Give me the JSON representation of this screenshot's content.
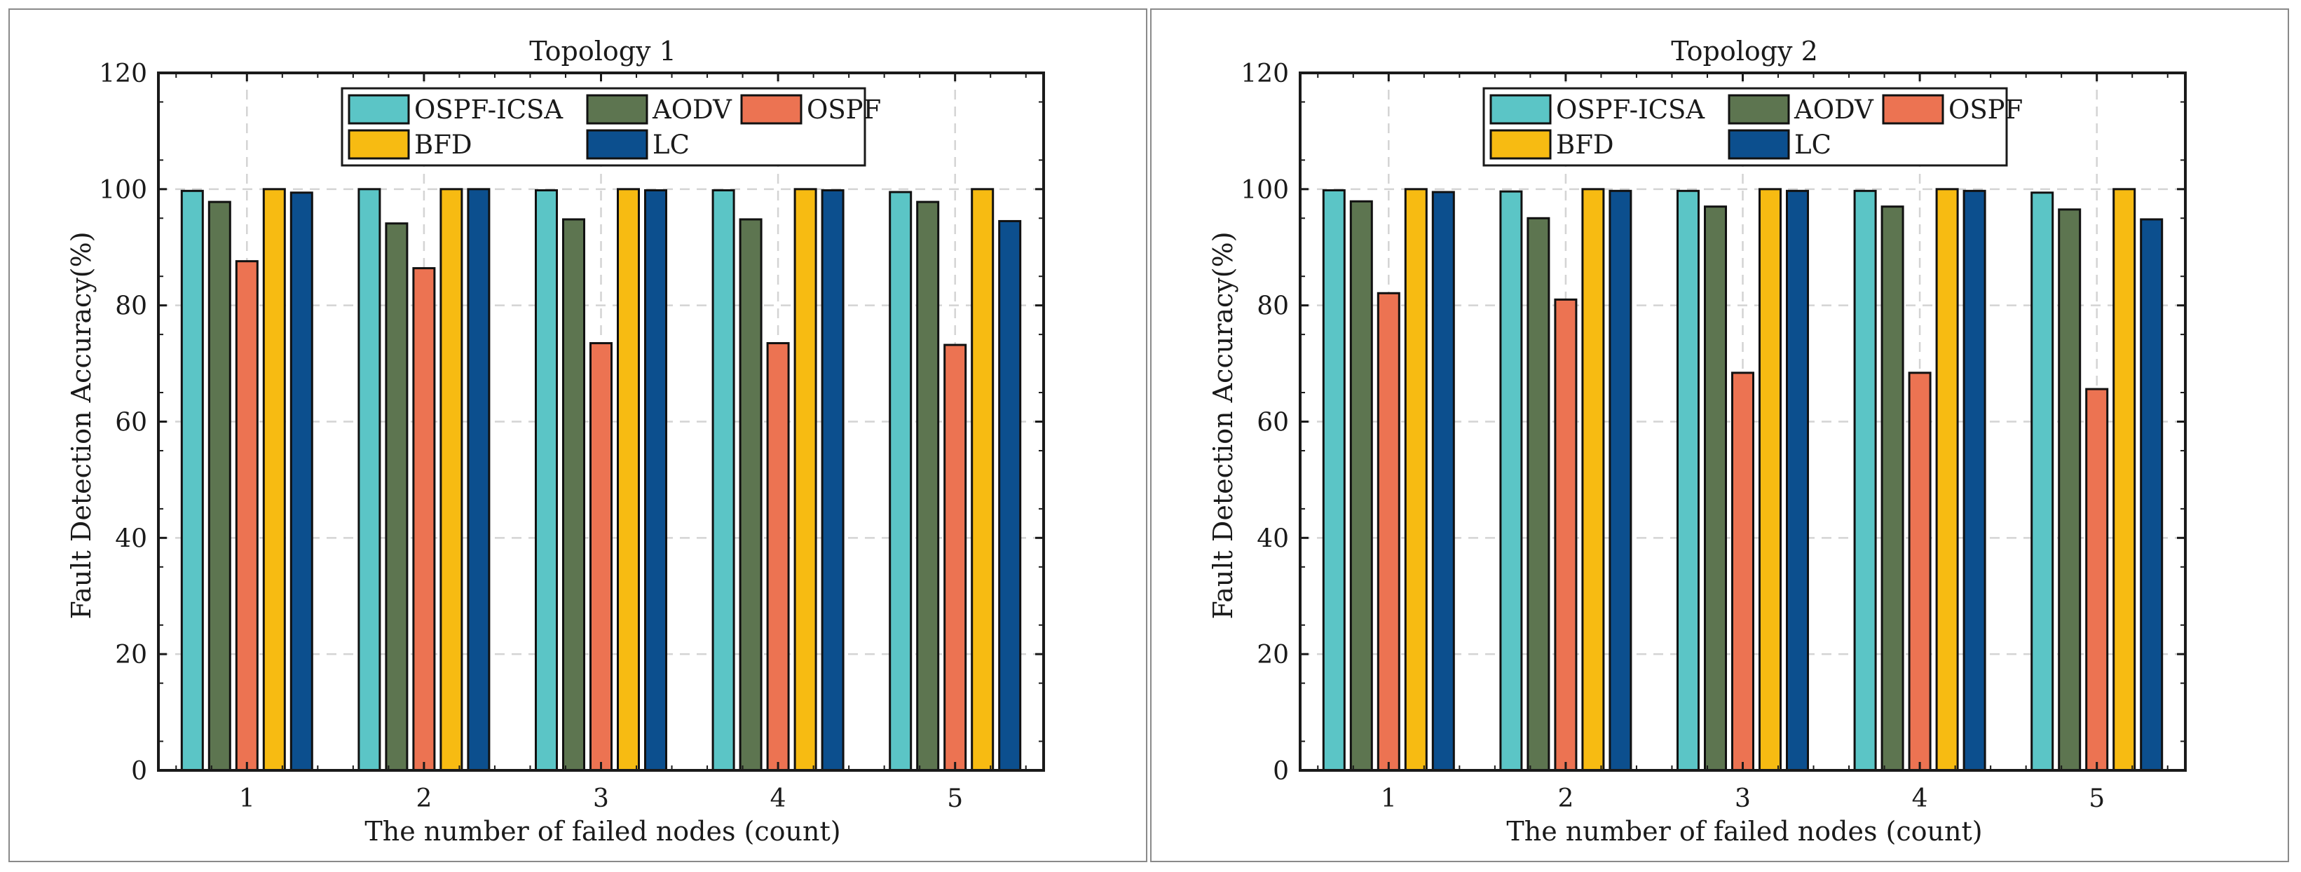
{
  "chart_data": [
    {
      "type": "bar",
      "title": "Topology 1",
      "xlabel": "The number of failed nodes (count)",
      "ylabel": "Fault Detection Accuracy(%)",
      "ylim": [
        0,
        120
      ],
      "yticks": [
        "0",
        "20",
        "40",
        "60",
        "80",
        "100",
        "120"
      ],
      "grid": true,
      "legend_position": "top-center",
      "categories": [
        "1",
        "2",
        "3",
        "4",
        "5"
      ],
      "series": [
        {
          "name": "OSPF-ICSA",
          "color": "#5bc5c6",
          "values": [
            99.7,
            100,
            99.8,
            99.8,
            99.5
          ]
        },
        {
          "name": "AODV",
          "color": "#5d7550",
          "values": [
            97.8,
            94.1,
            94.8,
            94.8,
            97.8
          ]
        },
        {
          "name": "OSPF",
          "color": "#ec7352",
          "values": [
            87.6,
            86.4,
            73.5,
            73.5,
            73.2
          ]
        },
        {
          "name": "BFD",
          "color": "#f7bb12",
          "values": [
            100,
            100,
            100,
            100,
            100
          ]
        },
        {
          "name": "LC",
          "color": "#0c4f8e",
          "values": [
            99.4,
            100,
            99.8,
            99.8,
            94.5
          ]
        }
      ]
    },
    {
      "type": "bar",
      "title": "Topology 2",
      "xlabel": "The number of failed nodes (count)",
      "ylabel": "Fault Detection Accuracy(%)",
      "ylim": [
        0,
        120
      ],
      "yticks": [
        "0",
        "20",
        "40",
        "60",
        "80",
        "100",
        "120"
      ],
      "grid": true,
      "legend_position": "top-center",
      "categories": [
        "1",
        "2",
        "3",
        "4",
        "5"
      ],
      "series": [
        {
          "name": "OSPF-ICSA",
          "color": "#5bc5c6",
          "values": [
            99.8,
            99.6,
            99.7,
            99.7,
            99.4
          ]
        },
        {
          "name": "AODV",
          "color": "#5d7550",
          "values": [
            97.9,
            95.0,
            97.0,
            97.0,
            96.5
          ]
        },
        {
          "name": "OSPF",
          "color": "#ec7352",
          "values": [
            82.1,
            81.0,
            68.4,
            68.4,
            65.6
          ]
        },
        {
          "name": "BFD",
          "color": "#f7bb12",
          "values": [
            100,
            100,
            100,
            100,
            100
          ]
        },
        {
          "name": "LC",
          "color": "#0c4f8e",
          "values": [
            99.5,
            99.7,
            99.7,
            99.7,
            94.8
          ]
        }
      ]
    }
  ]
}
